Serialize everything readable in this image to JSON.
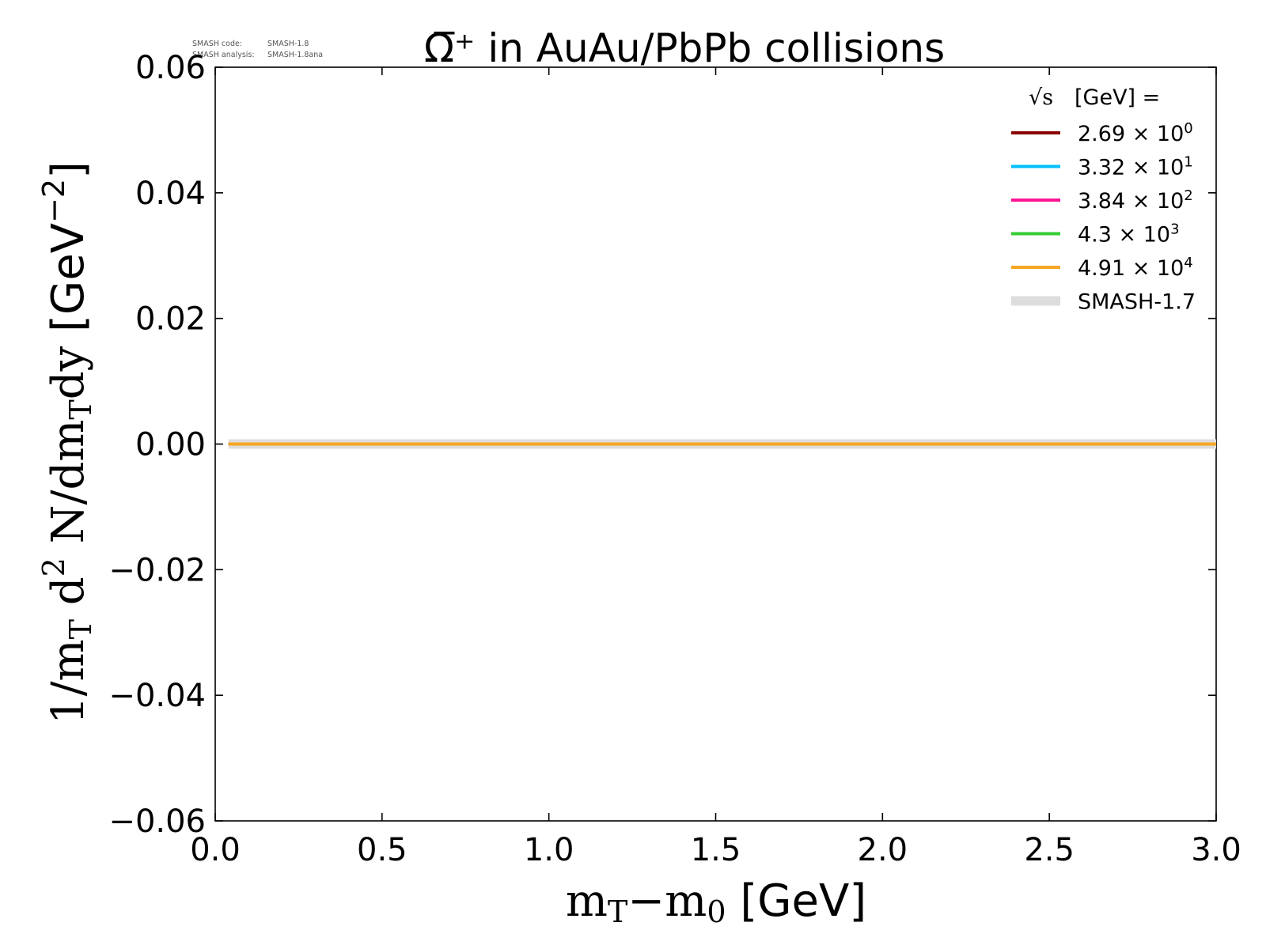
{
  "meta": {
    "code_label": "SMASH code:",
    "code_value": "SMASH-1.8",
    "analysis_label": "SMASH analysis:",
    "analysis_value": "SMASH-1.8ana"
  },
  "chart_data": {
    "type": "line",
    "title": "Ω̅⁺ in AuAu/PbPb collisions",
    "xlabel": "mT−m0 [GeV]",
    "ylabel": "1/mT d2 N/dmTdy [GeV−2]",
    "xlim": [
      0.0,
      3.0
    ],
    "ylim": [
      -0.06,
      0.06
    ],
    "x_ticks": [
      "0.0",
      "0.5",
      "1.0",
      "1.5",
      "2.0",
      "2.5",
      "3.0"
    ],
    "y_ticks": [
      "−0.06",
      "−0.04",
      "−0.02",
      "0.00",
      "0.02",
      "0.04",
      "0.06"
    ],
    "grid": false,
    "legend_position": "top-right",
    "legend_title": "√s [GeV] =",
    "series": [
      {
        "name": "2.69 × 10⁰",
        "mantissa": "2.69",
        "exponent": "0",
        "color": "#8b0000",
        "x": [
          0.04,
          3.0
        ],
        "y": [
          0.0,
          0.0
        ]
      },
      {
        "name": "3.32 × 10¹",
        "mantissa": "3.32",
        "exponent": "1",
        "color": "#00bfff",
        "x": [
          0.04,
          3.0
        ],
        "y": [
          0.0,
          0.0
        ]
      },
      {
        "name": "3.84 × 10²",
        "mantissa": "3.84",
        "exponent": "2",
        "color": "#ff1493",
        "x": [
          0.04,
          3.0
        ],
        "y": [
          0.0,
          0.0
        ]
      },
      {
        "name": "4.3 × 10³",
        "mantissa": "4.3",
        "exponent": "3",
        "color": "#32cd32",
        "x": [
          0.04,
          3.0
        ],
        "y": [
          0.0,
          0.0
        ]
      },
      {
        "name": "4.91 × 10⁴",
        "mantissa": "4.91",
        "exponent": "4",
        "color": "#f5a623",
        "x": [
          0.04,
          3.0
        ],
        "y": [
          0.0,
          0.0
        ]
      }
    ],
    "reference": {
      "name": "SMASH-1.7",
      "color": "#dddddd",
      "x": [
        0.04,
        3.0
      ],
      "y": [
        0.0,
        0.0
      ]
    }
  }
}
